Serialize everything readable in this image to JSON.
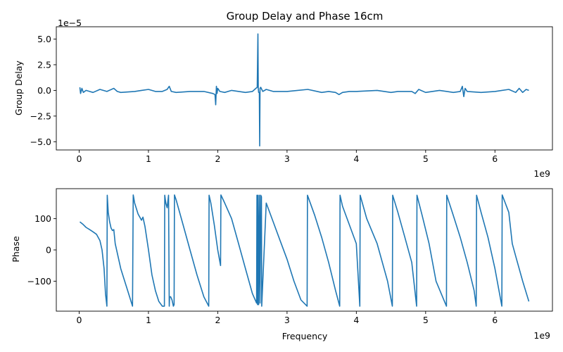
{
  "chart_data": [
    {
      "type": "line",
      "title": "Group Delay and Phase 16cm",
      "xlabel": "",
      "ylabel": "Group Delay",
      "x_offset_text": "1e9",
      "y_offset_text": "1e−5",
      "xlim": [
        -0.33,
        6.83
      ],
      "ylim": [
        -5.8,
        6.2
      ],
      "xticks": [
        0,
        1,
        2,
        3,
        4,
        5,
        6
      ],
      "xtick_labels": [
        "0",
        "1",
        "2",
        "3",
        "4",
        "5",
        "6"
      ],
      "yticks": [
        -5.0,
        -2.5,
        0.0,
        2.5,
        5.0
      ],
      "ytick_labels": [
        "−5.0",
        "−2.5",
        "0.0",
        "2.5",
        "5.0"
      ],
      "grid": false,
      "color": "#1f77b4",
      "series": [
        {
          "x": [
            0.01,
            0.02,
            0.04,
            0.06,
            0.1,
            0.2,
            0.3,
            0.4,
            0.5,
            0.55,
            0.6,
            0.8,
            0.9,
            1.0,
            1.1,
            1.2,
            1.27,
            1.3,
            1.33,
            1.4,
            1.6,
            1.8,
            1.93,
            1.96,
            1.97,
            1.98,
            1.99,
            2.0,
            2.03,
            2.1,
            2.2,
            2.4,
            2.5,
            2.55,
            2.57,
            2.58,
            2.585,
            2.59,
            2.6,
            2.605,
            2.61,
            2.62,
            2.65,
            2.7,
            2.8,
            3.0,
            3.3,
            3.5,
            3.6,
            3.7,
            3.75,
            3.8,
            3.9,
            4.0,
            4.3,
            4.5,
            4.6,
            4.8,
            4.85,
            4.9,
            5.0,
            5.2,
            5.4,
            5.5,
            5.53,
            5.55,
            5.57,
            5.6,
            5.8,
            6.0,
            6.2,
            6.3,
            6.35,
            6.4,
            6.45,
            6.49
          ],
          "y": [
            0.3,
            -0.3,
            0.2,
            -0.2,
            0.0,
            -0.2,
            0.1,
            -0.1,
            0.2,
            -0.1,
            -0.2,
            -0.1,
            0.0,
            0.1,
            -0.1,
            -0.1,
            0.1,
            0.4,
            -0.1,
            -0.2,
            -0.1,
            -0.1,
            -0.3,
            -0.4,
            -1.4,
            0.4,
            -0.3,
            0.2,
            -0.1,
            -0.2,
            0.0,
            -0.2,
            -0.1,
            0.2,
            0.3,
            5.5,
            0.2,
            -0.2,
            -0.2,
            -5.4,
            0.2,
            0.3,
            -0.1,
            0.1,
            -0.1,
            -0.1,
            0.1,
            -0.2,
            -0.1,
            -0.2,
            -0.4,
            -0.2,
            -0.1,
            -0.1,
            0.0,
            -0.2,
            -0.1,
            -0.1,
            -0.3,
            0.1,
            -0.2,
            0.0,
            -0.2,
            -0.1,
            0.4,
            -0.6,
            0.2,
            -0.1,
            -0.2,
            -0.1,
            0.1,
            -0.2,
            0.2,
            -0.2,
            0.1,
            0.0
          ]
        }
      ]
    },
    {
      "type": "line",
      "title": "",
      "xlabel": "Frequency",
      "ylabel": "Phase",
      "x_offset_text": "1e9",
      "xlim": [
        -0.33,
        6.83
      ],
      "ylim": [
        -196,
        196
      ],
      "xticks": [
        0,
        1,
        2,
        3,
        4,
        5,
        6
      ],
      "xtick_labels": [
        "0",
        "1",
        "2",
        "3",
        "4",
        "5",
        "6"
      ],
      "yticks": [
        -100,
        0,
        100
      ],
      "ytick_labels": [
        "−100",
        "0",
        "100"
      ],
      "grid": false,
      "color": "#1f77b4",
      "series": [
        {
          "x": [
            0.01,
            0.05,
            0.1,
            0.15,
            0.2,
            0.25,
            0.3,
            0.33,
            0.36,
            0.38,
            0.4,
            0.405,
            0.42,
            0.44,
            0.46,
            0.48,
            0.5,
            0.52,
            0.6,
            0.7,
            0.77,
            0.78,
            0.785,
            0.8,
            0.85,
            0.9,
            0.92,
            0.95,
            1.0,
            1.05,
            1.1,
            1.15,
            1.2,
            1.23,
            1.235,
            1.25,
            1.27,
            1.29,
            1.3,
            1.305,
            1.32,
            1.34,
            1.36,
            1.37,
            1.375,
            1.4,
            1.5,
            1.6,
            1.7,
            1.8,
            1.87,
            1.875,
            1.9,
            1.95,
            2.0,
            2.04,
            2.045,
            2.1,
            2.2,
            2.3,
            2.4,
            2.5,
            2.56,
            2.565,
            2.575,
            2.58,
            2.59,
            2.6,
            2.61,
            2.62,
            2.63,
            2.635,
            2.7,
            2.8,
            2.9,
            3.0,
            3.1,
            3.2,
            3.29,
            3.295,
            3.4,
            3.5,
            3.6,
            3.7,
            3.76,
            3.765,
            3.8,
            3.9,
            4.0,
            4.05,
            4.055,
            4.15,
            4.3,
            4.45,
            4.52,
            4.525,
            4.6,
            4.7,
            4.8,
            4.87,
            4.875,
            4.95,
            5.05,
            5.15,
            5.3,
            5.305,
            5.4,
            5.5,
            5.6,
            5.7,
            5.73,
            5.735,
            5.8,
            5.9,
            6.0,
            6.1,
            6.105,
            6.2,
            6.25,
            6.3,
            6.4,
            6.49
          ],
          "y": [
            90,
            83,
            72,
            65,
            58,
            50,
            30,
            0,
            -60,
            -140,
            -180,
            175,
            120,
            90,
            70,
            62,
            65,
            20,
            -60,
            -130,
            -180,
            176,
            170,
            150,
            115,
            95,
            105,
            75,
            0,
            -80,
            -130,
            -165,
            -180,
            -180,
            175,
            150,
            135,
            175,
            -180,
            -150,
            -150,
            -160,
            -180,
            -175,
            176,
            160,
            80,
            0,
            -80,
            -150,
            -180,
            175,
            150,
            80,
            0,
            -50,
            176,
            150,
            100,
            20,
            -60,
            -140,
            -170,
            175,
            -175,
            175,
            -175,
            175,
            -170,
            175,
            170,
            -180,
            150,
            90,
            30,
            -30,
            -100,
            -160,
            -180,
            175,
            110,
            40,
            -40,
            -130,
            -180,
            175,
            140,
            80,
            20,
            -180,
            175,
            100,
            20,
            -100,
            -180,
            175,
            120,
            40,
            -40,
            -180,
            175,
            110,
            20,
            -100,
            -180,
            175,
            110,
            40,
            -40,
            -130,
            -180,
            175,
            120,
            40,
            -60,
            -180,
            176,
            120,
            20,
            -20,
            -100,
            -165
          ]
        }
      ]
    }
  ]
}
